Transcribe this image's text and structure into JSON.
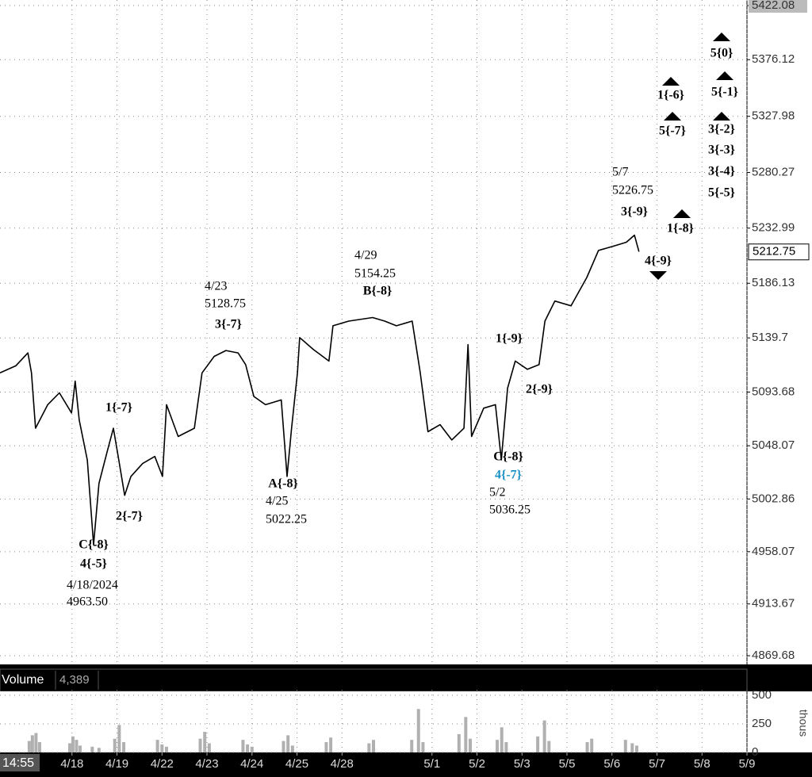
{
  "chart_data": [
    {
      "type": "line",
      "color": "#000000",
      "grid": true,
      "x": [
        -0.6,
        -0.25,
        0.02,
        0.1,
        0.19,
        0.46,
        0.72,
        0.99,
        1.07,
        1.16,
        1.34,
        1.48,
        1.6,
        1.78,
        1.92,
        2.04,
        2.17,
        2.31,
        2.57,
        2.84,
        3.01,
        3.1,
        3.36,
        3.72,
        3.89,
        4.16,
        4.42,
        4.69,
        4.86,
        5.04,
        5.3,
        5.65,
        5.78,
        5.88,
        6.01,
        6.06,
        6.36,
        6.71,
        6.8,
        7.15,
        7.68,
        7.95,
        8.21,
        8.56,
        8.74,
        8.91,
        9.18,
        9.44,
        9.71,
        9.8,
        9.88,
        10.15,
        10.41,
        10.54,
        10.68,
        10.85,
        11.12,
        11.38,
        11.51,
        11.73,
        12.09,
        12.44,
        12.7,
        13.06,
        13.32,
        13.5,
        13.6
      ],
      "values": [
        5110,
        5116,
        5127,
        5110,
        5063,
        5083,
        5093,
        5076,
        5103,
        5070,
        5036,
        4964,
        5016,
        5043,
        5063,
        5036,
        5006,
        5022,
        5033,
        5039,
        5022,
        5083,
        5056,
        5063,
        5110,
        5124,
        5129,
        5127,
        5117,
        5090,
        5083,
        5087,
        5022,
        5063,
        5110,
        5140,
        5130,
        5120,
        5150,
        5154,
        5157,
        5154,
        5150,
        5154,
        5110,
        5060,
        5066,
        5053,
        5063,
        5134,
        5056,
        5080,
        5083,
        5036,
        5097,
        5120,
        5113,
        5117,
        5154,
        5171,
        5167,
        5191,
        5214,
        5218,
        5221,
        5227,
        5213
      ],
      "xlim": [
        -0.6,
        16
      ],
      "ylim": [
        4862.3,
        5426.8
      ],
      "yticks": [
        4869.68,
        4913.67,
        4958.07,
        5002.86,
        5048.07,
        5093.68,
        5139.7,
        5186.13,
        5232.99,
        5280.27,
        5327.98,
        5376.12,
        5422.08
      ],
      "xticks": [
        {
          "value": 1,
          "label": "4/18"
        },
        {
          "value": 2,
          "label": "4/19"
        },
        {
          "value": 3,
          "label": "4/22"
        },
        {
          "value": 4,
          "label": "4/23"
        },
        {
          "value": 5,
          "label": "4/24"
        },
        {
          "value": 6,
          "label": "4/25"
        },
        {
          "value": 7,
          "label": "4/28"
        },
        {
          "value": 9,
          "label": "5/1"
        },
        {
          "value": 10,
          "label": "5/2"
        },
        {
          "value": 11,
          "label": "5/3"
        },
        {
          "value": 12,
          "label": "5/5"
        },
        {
          "value": 13,
          "label": "5/6"
        },
        {
          "value": 14,
          "label": "5/7"
        },
        {
          "value": 15,
          "label": "5/8"
        },
        {
          "value": 16,
          "label": "5/9"
        }
      ],
      "last_value": 5212.75,
      "time_label": "14:55",
      "annotations": [
        {
          "text": "4/23"
        },
        {
          "text": "5128.75"
        },
        {
          "text": "3{-7}"
        },
        {
          "text": "4/29"
        },
        {
          "text": "5154.25"
        },
        {
          "text": "B{-8}"
        },
        {
          "text": "5/7"
        },
        {
          "text": "5226.75"
        },
        {
          "text": "3{-9}"
        },
        {
          "text": "1{-8}"
        },
        {
          "text": "4{-9}"
        },
        {
          "text": "1{-6}"
        },
        {
          "text": "5{-7}"
        },
        {
          "text": "5{0}"
        },
        {
          "text": "5{-1}"
        },
        {
          "text": "3{-2}"
        },
        {
          "text": "3{-3}"
        },
        {
          "text": "3{-4}"
        },
        {
          "text": "5{-5}"
        },
        {
          "text": "1{-7}"
        },
        {
          "text": "2{-7}"
        },
        {
          "text": "C{-8}"
        },
        {
          "text": "4{-5}"
        },
        {
          "text": "4/18/2024"
        },
        {
          "text": "4963.50"
        },
        {
          "text": "A{-8}"
        },
        {
          "text": "4/25"
        },
        {
          "text": "5022.25"
        },
        {
          "text": "1{-9}"
        },
        {
          "text": "2{-9}"
        },
        {
          "text": "C{-8}"
        },
        {
          "text": "4{-7}",
          "color": "#1a8fc4"
        },
        {
          "text": "5/2"
        },
        {
          "text": "5036.25"
        }
      ]
    },
    {
      "type": "bar",
      "title": "Volume",
      "current_label": "4,389",
      "unit_label": "thous",
      "color": "#b0b0b0",
      "x": [
        0.05,
        0.12,
        0.2,
        0.28,
        0.95,
        1.02,
        1.1,
        1.18,
        1.45,
        1.6,
        1.95,
        2.05,
        2.15,
        2.9,
        3.0,
        3.1,
        3.85,
        3.95,
        4.05,
        4.8,
        4.9,
        5.0,
        5.7,
        5.8,
        5.9,
        6.65,
        6.75,
        7.6,
        7.7,
        8.55,
        8.7,
        8.8,
        9.6,
        9.75,
        9.85,
        10.45,
        10.55,
        10.65,
        11.35,
        11.5,
        11.6,
        12.45,
        12.55,
        13.3,
        13.45,
        13.55
      ],
      "values": [
        100,
        150,
        170,
        90,
        80,
        140,
        110,
        60,
        50,
        40,
        120,
        240,
        90,
        110,
        70,
        50,
        120,
        180,
        80,
        110,
        70,
        50,
        100,
        150,
        60,
        90,
        130,
        80,
        110,
        110,
        380,
        90,
        160,
        310,
        120,
        110,
        220,
        90,
        140,
        280,
        100,
        90,
        120,
        110,
        80,
        60
      ],
      "ylim": [
        0,
        548
      ],
      "yticks": [
        0,
        250,
        500
      ]
    }
  ]
}
